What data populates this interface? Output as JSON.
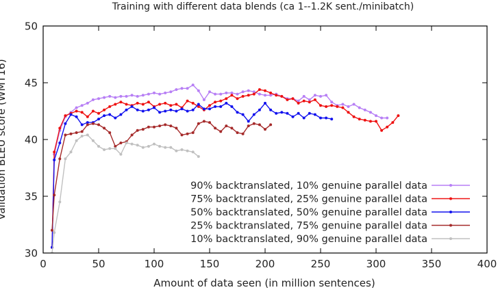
{
  "chart_data": {
    "type": "line",
    "title": "Training with different data blends (ca 1--1.2K sent./minibatch)",
    "xlabel": "Amount of data seen (in million sentences)",
    "ylabel": "Validation BLEU score (WMT16)",
    "xlim": [
      0,
      400
    ],
    "ylim": [
      30,
      50
    ],
    "xticks": [
      0,
      50,
      100,
      150,
      200,
      250,
      300,
      350,
      400
    ],
    "yticks": [
      30,
      35,
      40,
      45,
      50
    ],
    "grid": false,
    "legend_position": "bottom-right",
    "series": [
      {
        "name": "90% backtranslated, 10% genuine parallel data",
        "color": "#b77ff5",
        "x": [
          8,
          10,
          15,
          20,
          25,
          30,
          35,
          40,
          45,
          50,
          55,
          60,
          65,
          70,
          75,
          80,
          85,
          90,
          95,
          100,
          105,
          110,
          115,
          120,
          125,
          130,
          135,
          140,
          145,
          150,
          155,
          160,
          165,
          170,
          175,
          180,
          185,
          190,
          195,
          200,
          205,
          210,
          215,
          220,
          225,
          230,
          235,
          240,
          245,
          250,
          255,
          260,
          265,
          270,
          275,
          280,
          285,
          290,
          295,
          300,
          305,
          310
        ],
        "y": [
          30.5,
          38.7,
          40.8,
          42.0,
          42.4,
          42.8,
          43.0,
          43.2,
          43.5,
          43.6,
          43.7,
          43.8,
          43.7,
          43.8,
          43.8,
          43.9,
          43.8,
          43.9,
          44.0,
          44.1,
          44.0,
          44.1,
          44.2,
          44.4,
          44.5,
          44.5,
          44.8,
          44.3,
          43.5,
          44.2,
          44.0,
          44.0,
          44.1,
          44.1,
          44.0,
          44.2,
          44.3,
          44.2,
          44.0,
          43.9,
          43.9,
          44.0,
          43.8,
          43.6,
          43.6,
          43.4,
          43.8,
          43.5,
          43.9,
          43.8,
          43.9,
          43.3,
          43.0,
          43.1,
          42.9,
          43.1,
          42.8,
          42.6,
          42.4,
          42.1,
          41.9,
          41.9
        ]
      },
      {
        "name": "75% backtranslated, 25% genuine parallel data",
        "color": "#ee1111",
        "x": [
          8,
          10,
          15,
          20,
          25,
          30,
          35,
          40,
          45,
          50,
          55,
          60,
          65,
          70,
          75,
          80,
          85,
          90,
          95,
          100,
          105,
          110,
          115,
          120,
          125,
          130,
          135,
          140,
          145,
          150,
          155,
          160,
          165,
          170,
          175,
          180,
          185,
          190,
          195,
          200,
          205,
          210,
          215,
          220,
          225,
          230,
          235,
          240,
          245,
          250,
          255,
          260,
          265,
          270,
          275,
          280,
          285,
          290,
          295,
          300,
          305,
          310,
          315,
          320
        ],
        "y": [
          30.5,
          38.9,
          41.0,
          42.1,
          42.3,
          42.5,
          42.4,
          42.0,
          42.5,
          42.3,
          42.6,
          42.9,
          43.1,
          43.3,
          43.1,
          43.0,
          43.2,
          43.1,
          43.3,
          42.9,
          43.1,
          43.2,
          43.0,
          43.1,
          42.8,
          43.4,
          43.2,
          42.9,
          42.6,
          43.0,
          43.3,
          43.4,
          43.6,
          43.9,
          43.6,
          43.8,
          43.9,
          44.0,
          44.4,
          44.3,
          44.1,
          43.9,
          43.8,
          43.5,
          43.6,
          43.2,
          43.4,
          43.3,
          43.5,
          43.0,
          42.9,
          43.0,
          42.9,
          42.8,
          42.4,
          42.0,
          41.8,
          41.7,
          41.6,
          41.6,
          40.8,
          41.1,
          41.5,
          42.1
        ]
      },
      {
        "name": "50% backtranslated, 50% genuine parallel data",
        "color": "#1111ee",
        "x": [
          8,
          10,
          15,
          20,
          25,
          30,
          35,
          40,
          45,
          50,
          55,
          60,
          65,
          70,
          75,
          80,
          85,
          90,
          95,
          100,
          105,
          110,
          115,
          120,
          125,
          130,
          135,
          140,
          145,
          150,
          155,
          160,
          165,
          170,
          175,
          180,
          185,
          190,
          195,
          200,
          205,
          210,
          215,
          220,
          225,
          230,
          235,
          240,
          245,
          250,
          255,
          260
        ],
        "y": [
          30.5,
          38.2,
          39.7,
          41.4,
          42.2,
          42.0,
          41.3,
          41.5,
          41.5,
          41.8,
          42.1,
          42.2,
          41.9,
          42.2,
          42.6,
          42.9,
          42.6,
          42.5,
          42.6,
          42.8,
          42.4,
          42.5,
          42.6,
          42.5,
          42.7,
          42.5,
          42.6,
          43.1,
          42.7,
          42.7,
          42.9,
          42.9,
          43.2,
          42.9,
          42.4,
          42.2,
          41.6,
          42.2,
          42.6,
          43.2,
          42.6,
          42.3,
          42.4,
          42.3,
          42.0,
          42.3,
          41.9,
          42.3,
          42.2,
          41.9,
          41.9,
          41.8
        ]
      },
      {
        "name": "25% backtranslated, 75% genuine parallel data",
        "color": "#a52a2a",
        "x": [
          8,
          10,
          15,
          20,
          25,
          30,
          35,
          40,
          45,
          50,
          55,
          60,
          65,
          70,
          75,
          80,
          85,
          90,
          95,
          100,
          105,
          110,
          115,
          120,
          125,
          130,
          135,
          140,
          145,
          150,
          155,
          160,
          165,
          170,
          175,
          180,
          185,
          190,
          195,
          200,
          205
        ],
        "y": [
          32.0,
          35.1,
          38.3,
          40.4,
          40.5,
          40.6,
          40.7,
          41.3,
          41.4,
          41.3,
          41.0,
          40.6,
          39.4,
          39.7,
          39.8,
          40.4,
          40.8,
          40.9,
          41.1,
          41.1,
          41.2,
          41.3,
          41.2,
          41.0,
          40.4,
          40.5,
          40.6,
          41.4,
          41.6,
          41.5,
          41.0,
          40.7,
          41.2,
          41.0,
          40.6,
          40.5,
          41.2,
          41.4,
          41.3,
          40.9,
          41.3
        ]
      },
      {
        "name": "10% backtranslated, 90% genuine parallel data",
        "color": "#c0c0c0",
        "x": [
          8,
          10,
          15,
          20,
          25,
          30,
          35,
          40,
          45,
          50,
          55,
          60,
          65,
          70,
          75,
          80,
          85,
          90,
          95,
          100,
          105,
          110,
          115,
          120,
          125,
          130,
          135,
          140
        ],
        "y": [
          30.0,
          31.8,
          34.5,
          38.3,
          38.9,
          39.9,
          40.3,
          40.4,
          39.9,
          39.4,
          39.1,
          39.2,
          39.2,
          38.7,
          39.7,
          39.6,
          39.5,
          39.3,
          39.4,
          39.6,
          39.4,
          39.3,
          39.3,
          39.0,
          39.1,
          39.0,
          38.9,
          38.5
        ]
      }
    ]
  }
}
